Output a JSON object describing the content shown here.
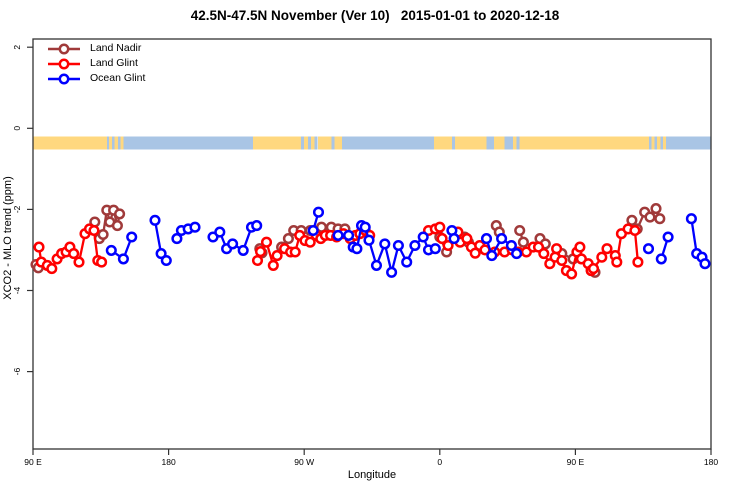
{
  "title": "42.5N-47.5N November (Ver 10)   2015-01-01 to 2020-12-18",
  "axes": {
    "x_label": "Longitude",
    "y_label": "XCO2 - MLO trend (ppm)"
  },
  "chart_data": {
    "type": "scatter",
    "title": "42.5N-47.5N November (Ver 10)   2015-01-01 to 2020-12-18",
    "xlabel": "Longitude",
    "ylabel": "XCO2 - MLO trend (ppm)",
    "unit": "ppm",
    "x_axis_note": "x axis spans 450 deg of longitude starting at 90E wrapping eastward to 180",
    "x_plot_range": [
      90,
      540
    ],
    "ylim": [
      -7.9,
      2.2
    ],
    "grid": false,
    "legend_position": "top-left",
    "x_ticks": [
      {
        "lon": 90,
        "label": "90 E"
      },
      {
        "lon": 180,
        "label": "180"
      },
      {
        "lon": 270,
        "label": "90 W"
      },
      {
        "lon": 360,
        "label": "0"
      },
      {
        "lon": 450,
        "label": "90 E"
      },
      {
        "lon": 540,
        "label": "180"
      }
    ],
    "y_ticks": [
      {
        "value": 2,
        "label": "2"
      },
      {
        "value": 0,
        "label": "0"
      },
      {
        "value": -2,
        "label": "-2"
      },
      {
        "value": -4,
        "label": "-4"
      },
      {
        "value": -6,
        "label": "-6"
      }
    ],
    "map_strip": {
      "description": "land/ocean coastline band for latitude 42.5N-47.5N drawn near y=-0.35",
      "colors": {
        "land": "#FFD87F",
        "ocean": "#A9C5E5"
      },
      "value_top": -0.2,
      "value_bottom": -0.52,
      "segments": [
        [
          90,
          139,
          "land"
        ],
        [
          139,
          140.5,
          "ocean"
        ],
        [
          140.5,
          142.5,
          "land"
        ],
        [
          142.5,
          144,
          "ocean"
        ],
        [
          144,
          146.5,
          "land"
        ],
        [
          146.5,
          148,
          "ocean"
        ],
        [
          148,
          150,
          "land"
        ],
        [
          150,
          236,
          "ocean"
        ],
        [
          236,
          268,
          "land"
        ],
        [
          268,
          270,
          "ocean"
        ],
        [
          270,
          272.5,
          "land"
        ],
        [
          272.5,
          274.5,
          "ocean"
        ],
        [
          274.5,
          277,
          "land"
        ],
        [
          277,
          279,
          "ocean"
        ],
        [
          279,
          288,
          "land"
        ],
        [
          288,
          290,
          "ocean"
        ],
        [
          290,
          295,
          "land"
        ],
        [
          295,
          356,
          "ocean"
        ],
        [
          356,
          368,
          "land"
        ],
        [
          368,
          370,
          "ocean"
        ],
        [
          370,
          391,
          "land"
        ],
        [
          391,
          396,
          "ocean"
        ],
        [
          396,
          403,
          "land"
        ],
        [
          403,
          408.5,
          "ocean"
        ],
        [
          408.5,
          411,
          "land"
        ],
        [
          411,
          413,
          "ocean"
        ],
        [
          413,
          499,
          "land"
        ],
        [
          499,
          500.5,
          "ocean"
        ],
        [
          500.5,
          502.5,
          "land"
        ],
        [
          502.5,
          504,
          "ocean"
        ],
        [
          504,
          506.5,
          "land"
        ],
        [
          506.5,
          508,
          "ocean"
        ],
        [
          508,
          510,
          "land"
        ],
        [
          510,
          540,
          "ocean"
        ]
      ]
    },
    "series": [
      {
        "name": "Land Nadir",
        "color": "#A03A3A",
        "segments": [
          [
            [
              92,
              -3.36
            ],
            [
              93.5,
              -3.44
            ]
          ],
          [
            [
              131,
              -2.31
            ],
            [
              134,
              -2.72
            ],
            [
              136.5,
              -2.62
            ],
            [
              139,
              -2.02
            ],
            [
              141,
              -2.31
            ],
            [
              143.5,
              -2.02
            ],
            [
              146,
              -2.4
            ],
            [
              147.5,
              -2.11
            ]
          ],
          [
            [
              240.5,
              -2.97
            ],
            [
              242,
              -3.07
            ]
          ],
          [
            [
              255,
              -2.93
            ],
            [
              259.5,
              -2.72
            ],
            [
              263,
              -2.52
            ],
            [
              268,
              -2.52
            ],
            [
              274,
              -2.52
            ],
            [
              281.5,
              -2.44
            ],
            [
              288,
              -2.44
            ],
            [
              292.5,
              -2.48
            ],
            [
              297,
              -2.48
            ]
          ],
          [
            [
              360,
              -2.68
            ],
            [
              364.5,
              -3.05
            ]
          ],
          [
            [
              376.5,
              -2.68
            ],
            [
              379,
              -2.81
            ]
          ],
          [
            [
              397.5,
              -2.4
            ],
            [
              399.5,
              -2.56
            ]
          ],
          [
            [
              413,
              -2.52
            ],
            [
              415.5,
              -2.81
            ]
          ],
          [
            [
              426.5,
              -2.72
            ],
            [
              430,
              -2.85
            ]
          ],
          [
            [
              441,
              -3.09
            ],
            [
              448.5,
              -3.22
            ]
          ],
          [
            [
              460.5,
              -3.51
            ],
            [
              463,
              -3.55
            ]
          ],
          [
            [
              487.5,
              -2.27
            ],
            [
              491,
              -2.48
            ],
            [
              496,
              -2.07
            ],
            [
              499.5,
              -2.19
            ],
            [
              503.5,
              -1.98
            ],
            [
              506,
              -2.23
            ]
          ]
        ]
      },
      {
        "name": "Land Glint",
        "color": "#FF0000",
        "segments": [
          [
            [
              94,
              -2.93
            ],
            [
              95.5,
              -3.3
            ],
            [
              99.5,
              -3.38
            ],
            [
              102.5,
              -3.46
            ],
            [
              106,
              -3.22
            ],
            [
              109,
              -3.09
            ],
            [
              112,
              -3.05
            ],
            [
              114.5,
              -2.93
            ],
            [
              117,
              -3.09
            ],
            [
              120.5,
              -3.3
            ],
            [
              124.5,
              -2.6
            ],
            [
              127.5,
              -2.48
            ],
            [
              130.5,
              -2.52
            ],
            [
              133,
              -3.26
            ],
            [
              135.5,
              -3.3
            ]
          ],
          [
            [
              239,
              -3.26
            ],
            [
              241,
              -3.04
            ],
            [
              245,
              -2.81
            ],
            [
              249.5,
              -3.38
            ],
            [
              252,
              -3.14
            ],
            [
              257,
              -2.97
            ],
            [
              261,
              -3.05
            ],
            [
              264,
              -3.05
            ],
            [
              267,
              -2.64
            ],
            [
              270.5,
              -2.77
            ],
            [
              274,
              -2.81
            ],
            [
              278,
              -2.64
            ],
            [
              281,
              -2.72
            ],
            [
              284,
              -2.64
            ],
            [
              287.5,
              -2.64
            ],
            [
              291.5,
              -2.68
            ],
            [
              296,
              -2.6
            ],
            [
              300.5,
              -2.72
            ],
            [
              304,
              -2.64
            ],
            [
              307,
              -2.6
            ],
            [
              310.5,
              -2.52
            ],
            [
              313.5,
              -2.64
            ]
          ],
          [
            [
              352.5,
              -2.52
            ],
            [
              357,
              -2.48
            ],
            [
              360,
              -2.44
            ],
            [
              361.5,
              -2.72
            ],
            [
              365.5,
              -2.89
            ],
            [
              372,
              -2.56
            ],
            [
              373.5,
              -2.81
            ],
            [
              378,
              -2.72
            ],
            [
              381,
              -2.93
            ],
            [
              383.5,
              -3.08
            ],
            [
              386.5,
              -2.89
            ],
            [
              390,
              -3.0
            ],
            [
              396.5,
              -3.05
            ],
            [
              403,
              -3.05
            ],
            [
              408,
              -3.0
            ],
            [
              412,
              -3.05
            ],
            [
              417.5,
              -3.05
            ],
            [
              422,
              -2.93
            ],
            [
              425.5,
              -2.93
            ],
            [
              429,
              -3.09
            ],
            [
              433,
              -3.34
            ],
            [
              436.5,
              -3.18
            ],
            [
              437.5,
              -2.97
            ],
            [
              441,
              -3.26
            ],
            [
              444,
              -3.51
            ],
            [
              447.5,
              -3.59
            ],
            [
              451,
              -3.05
            ],
            [
              453,
              -2.93
            ],
            [
              454,
              -3.22
            ],
            [
              458.5,
              -3.34
            ],
            [
              460.5,
              -3.51
            ],
            [
              462,
              -3.46
            ],
            [
              467.5,
              -3.18
            ],
            [
              471,
              -2.97
            ],
            [
              476.5,
              -3.14
            ],
            [
              477.5,
              -3.3
            ],
            [
              480.5,
              -2.6
            ],
            [
              485,
              -2.48
            ],
            [
              489.5,
              -2.52
            ],
            [
              491.5,
              -3.3
            ]
          ]
        ]
      },
      {
        "name": "Ocean Glint",
        "color": "#0000FF",
        "segments": [
          [
            [
              142,
              -3.01
            ],
            [
              150,
              -3.22
            ],
            [
              155.5,
              -2.68
            ]
          ],
          [
            [
              171,
              -2.27
            ],
            [
              175,
              -3.09
            ],
            [
              178.5,
              -3.26
            ]
          ],
          [
            [
              185.5,
              -2.72
            ],
            [
              188.5,
              -2.52
            ],
            [
              193,
              -2.48
            ],
            [
              197.5,
              -2.44
            ]
          ],
          [
            [
              209.5,
              -2.68
            ],
            [
              214,
              -2.56
            ],
            [
              218.5,
              -2.97
            ],
            [
              222.5,
              -2.85
            ],
            [
              229.5,
              -3.01
            ],
            [
              235,
              -2.44
            ],
            [
              238.5,
              -2.4
            ]
          ],
          [
            [
              276,
              -2.52
            ],
            [
              279.5,
              -2.07
            ]
          ],
          [
            [
              292.5,
              -2.64
            ],
            [
              299.5,
              -2.64
            ]
          ],
          [
            [
              302.5,
              -2.93
            ],
            [
              305,
              -2.97
            ],
            [
              308,
              -2.4
            ],
            [
              310.5,
              -2.44
            ],
            [
              313,
              -2.76
            ],
            [
              318,
              -3.38
            ],
            [
              323.5,
              -2.85
            ],
            [
              328,
              -3.55
            ],
            [
              332.5,
              -2.89
            ],
            [
              338,
              -3.3
            ],
            [
              343.5,
              -2.89
            ],
            [
              349,
              -2.68
            ],
            [
              352.5,
              -3.0
            ],
            [
              357,
              -2.97
            ]
          ],
          [
            [
              368,
              -2.52
            ],
            [
              369.5,
              -2.72
            ]
          ],
          [
            [
              391,
              -2.72
            ],
            [
              394.5,
              -3.14
            ],
            [
              401,
              -2.72
            ],
            [
              407.5,
              -2.89
            ],
            [
              411,
              -3.09
            ]
          ],
          [
            [
              498.5,
              -2.97
            ]
          ],
          [
            [
              507,
              -3.22
            ],
            [
              511.5,
              -2.68
            ]
          ],
          [
            [
              527,
              -2.23
            ],
            [
              530.5,
              -3.09
            ]
          ],
          [
            [
              534,
              -3.18
            ],
            [
              536,
              -3.34
            ]
          ]
        ]
      }
    ]
  }
}
